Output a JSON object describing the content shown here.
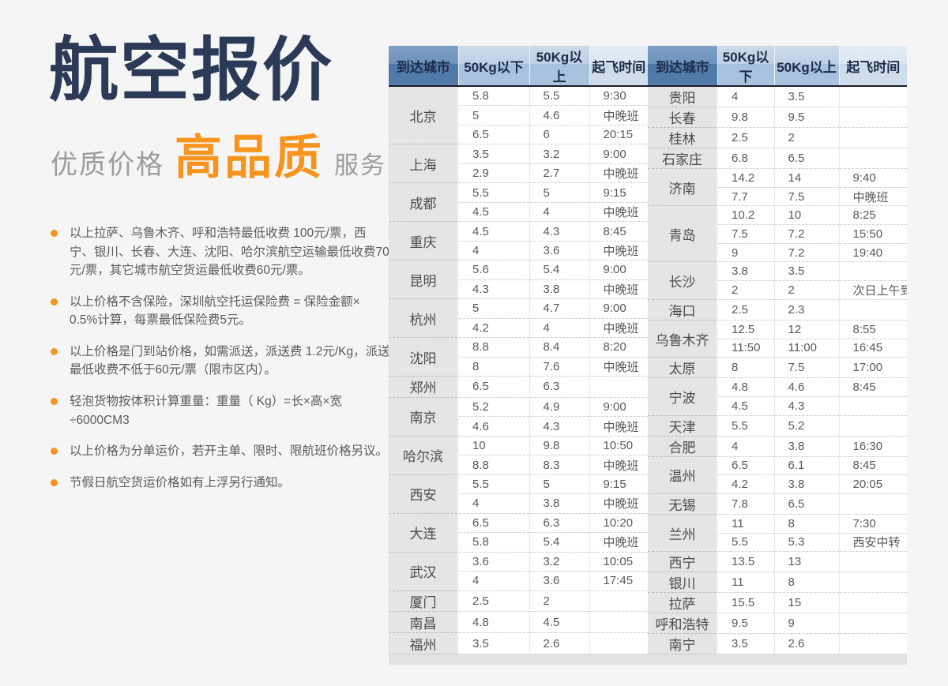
{
  "colors": {
    "navy": "#2b3a56",
    "accent_orange": "#f7941e",
    "header_dark_blue": "#4e78a7",
    "header_mid_blue": "#a6c1dd",
    "header_light_blue": "#cddcec",
    "city_cell_gray": "#e5e5e5",
    "page_bg": "#f5f5f5"
  },
  "hero": {
    "title": "航空报价",
    "subtitle_left": "优质价格",
    "subtitle_highlight": "高品质",
    "subtitle_right": "服务"
  },
  "notes": [
    "以上拉萨、乌鲁木齐、呼和浩特最低收费 100元/票，西宁、银川、长春、大连、沈阳、哈尔滨航空运输最低收费70元/票，其它城市航空货运最低收费60元/票。",
    "以上价格不含保险，深圳航空托运保险费 = 保险金额× 0.5%计算，每票最低保险费5元。",
    "以上价格是门到站价格，如需派送，派送费 1.2元/Kg，派送最低收费不低于60元/票（限市区内）。",
    "轻泡货物按体积计算重量：重量（ Kg）=长×高×宽÷6000CM3",
    "以上价格为分单运价，若开主单、限时、限航班价格另议。",
    "节假日航空货运价格如有上浮另行通知。"
  ],
  "table_headers": [
    "到达城市",
    "50Kg以下",
    "50Kg以上",
    "起飞时间"
  ],
  "tables": [
    {
      "groups": [
        {
          "city": "北京",
          "rows": [
            [
              "5.8",
              "5.5",
              "9:30"
            ],
            [
              "5",
              "4.6",
              "中晚班"
            ],
            [
              "6.5",
              "6",
              "20:15"
            ]
          ]
        },
        {
          "city": "上海",
          "rows": [
            [
              "3.5",
              "3.2",
              "9:00"
            ],
            [
              "2.9",
              "2.7",
              "中晚班"
            ]
          ]
        },
        {
          "city": "成都",
          "rows": [
            [
              "5.5",
              "5",
              "9:15"
            ],
            [
              "4.5",
              "4",
              "中晚班"
            ]
          ]
        },
        {
          "city": "重庆",
          "rows": [
            [
              "4.5",
              "4.3",
              "8:45"
            ],
            [
              "4",
              "3.6",
              "中晚班"
            ]
          ]
        },
        {
          "city": "昆明",
          "rows": [
            [
              "5.6",
              "5.4",
              "9:00"
            ],
            [
              "4.3",
              "3.8",
              "中晚班"
            ]
          ]
        },
        {
          "city": "杭州",
          "rows": [
            [
              "5",
              "4.7",
              "9:00"
            ],
            [
              "4.2",
              "4",
              "中晚班"
            ]
          ]
        },
        {
          "city": "沈阳",
          "rows": [
            [
              "8.8",
              "8.4",
              "8:20"
            ],
            [
              "8",
              "7.6",
              "中晚班"
            ]
          ]
        },
        {
          "city": "郑州",
          "rows": [
            [
              "6.5",
              "6.3",
              ""
            ]
          ]
        },
        {
          "city": "南京",
          "rows": [
            [
              "5.2",
              "4.9",
              "9:00"
            ],
            [
              "4.6",
              "4.3",
              "中晚班"
            ]
          ]
        },
        {
          "city": "哈尔滨",
          "rows": [
            [
              "10",
              "9.8",
              "10:50"
            ],
            [
              "8.8",
              "8.3",
              "中晚班"
            ]
          ]
        },
        {
          "city": "西安",
          "rows": [
            [
              "5.5",
              "5",
              "9:15"
            ],
            [
              "4",
              "3.8",
              "中晚班"
            ]
          ]
        },
        {
          "city": "大连",
          "rows": [
            [
              "6.5",
              "6.3",
              "10:20"
            ],
            [
              "5.8",
              "5.4",
              "中晚班"
            ]
          ]
        },
        {
          "city": "武汉",
          "rows": [
            [
              "3.6",
              "3.2",
              "10:05"
            ],
            [
              "4",
              "3.6",
              "17:45"
            ]
          ]
        },
        {
          "city": "厦门",
          "rows": [
            [
              "2.5",
              "2",
              ""
            ]
          ]
        },
        {
          "city": "南昌",
          "rows": [
            [
              "4.8",
              "4.5",
              ""
            ]
          ]
        },
        {
          "city": "福州",
          "rows": [
            [
              "3.5",
              "2.6",
              ""
            ]
          ]
        }
      ]
    },
    {
      "groups": [
        {
          "city": "贵阳",
          "rows": [
            [
              "4",
              "3.5",
              ""
            ]
          ]
        },
        {
          "city": "长春",
          "rows": [
            [
              "9.8",
              "9.5",
              ""
            ]
          ]
        },
        {
          "city": "桂林",
          "rows": [
            [
              "2.5",
              "2",
              ""
            ]
          ]
        },
        {
          "city": "石家庄",
          "rows": [
            [
              "6.8",
              "6.5",
              ""
            ]
          ]
        },
        {
          "city": "济南",
          "rows": [
            [
              "14.2",
              "14",
              "9:40"
            ],
            [
              "7.7",
              "7.5",
              "中晚班"
            ]
          ]
        },
        {
          "city": "青岛",
          "rows": [
            [
              "10.2",
              "10",
              "8:25"
            ],
            [
              "7.5",
              "7.2",
              "15:50"
            ],
            [
              "9",
              "7.2",
              "19:40"
            ]
          ]
        },
        {
          "city": "长沙",
          "rows": [
            [
              "3.8",
              "3.5",
              ""
            ],
            [
              "2",
              "2",
              "次日上午到"
            ]
          ]
        },
        {
          "city": "海口",
          "rows": [
            [
              "2.5",
              "2.3",
              ""
            ]
          ]
        },
        {
          "city": "乌鲁木齐",
          "rows": [
            [
              "12.5",
              "12",
              "8:55"
            ],
            [
              "11:50",
              "11:00",
              "16:45"
            ]
          ]
        },
        {
          "city": "太原",
          "rows": [
            [
              "8",
              "7.5",
              "17:00"
            ]
          ]
        },
        {
          "city": "宁波",
          "rows": [
            [
              "4.8",
              "4.6",
              "8:45"
            ],
            [
              "4.5",
              "4.3",
              ""
            ]
          ]
        },
        {
          "city": "天津",
          "rows": [
            [
              "5.5",
              "5.2",
              ""
            ]
          ]
        },
        {
          "city": "合肥",
          "rows": [
            [
              "4",
              "3.8",
              "16:30"
            ]
          ]
        },
        {
          "city": "温州",
          "rows": [
            [
              "6.5",
              "6.1",
              "8:45"
            ],
            [
              "4.2",
              "3.8",
              "20:05"
            ]
          ]
        },
        {
          "city": "无锡",
          "rows": [
            [
              "7.8",
              "6.5",
              ""
            ]
          ]
        },
        {
          "city": "兰州",
          "rows": [
            [
              "11",
              "8",
              "7:30"
            ],
            [
              "5.5",
              "5.3",
              "西安中转"
            ]
          ]
        },
        {
          "city": "西宁",
          "rows": [
            [
              "13.5",
              "13",
              ""
            ]
          ]
        },
        {
          "city": "银川",
          "rows": [
            [
              "11",
              "8",
              ""
            ]
          ]
        },
        {
          "city": "拉萨",
          "rows": [
            [
              "15.5",
              "15",
              ""
            ]
          ]
        },
        {
          "city": "呼和浩特",
          "rows": [
            [
              "9.5",
              "9",
              ""
            ]
          ]
        },
        {
          "city": "南宁",
          "rows": [
            [
              "3.5",
              "2.6",
              ""
            ]
          ]
        }
      ]
    }
  ]
}
